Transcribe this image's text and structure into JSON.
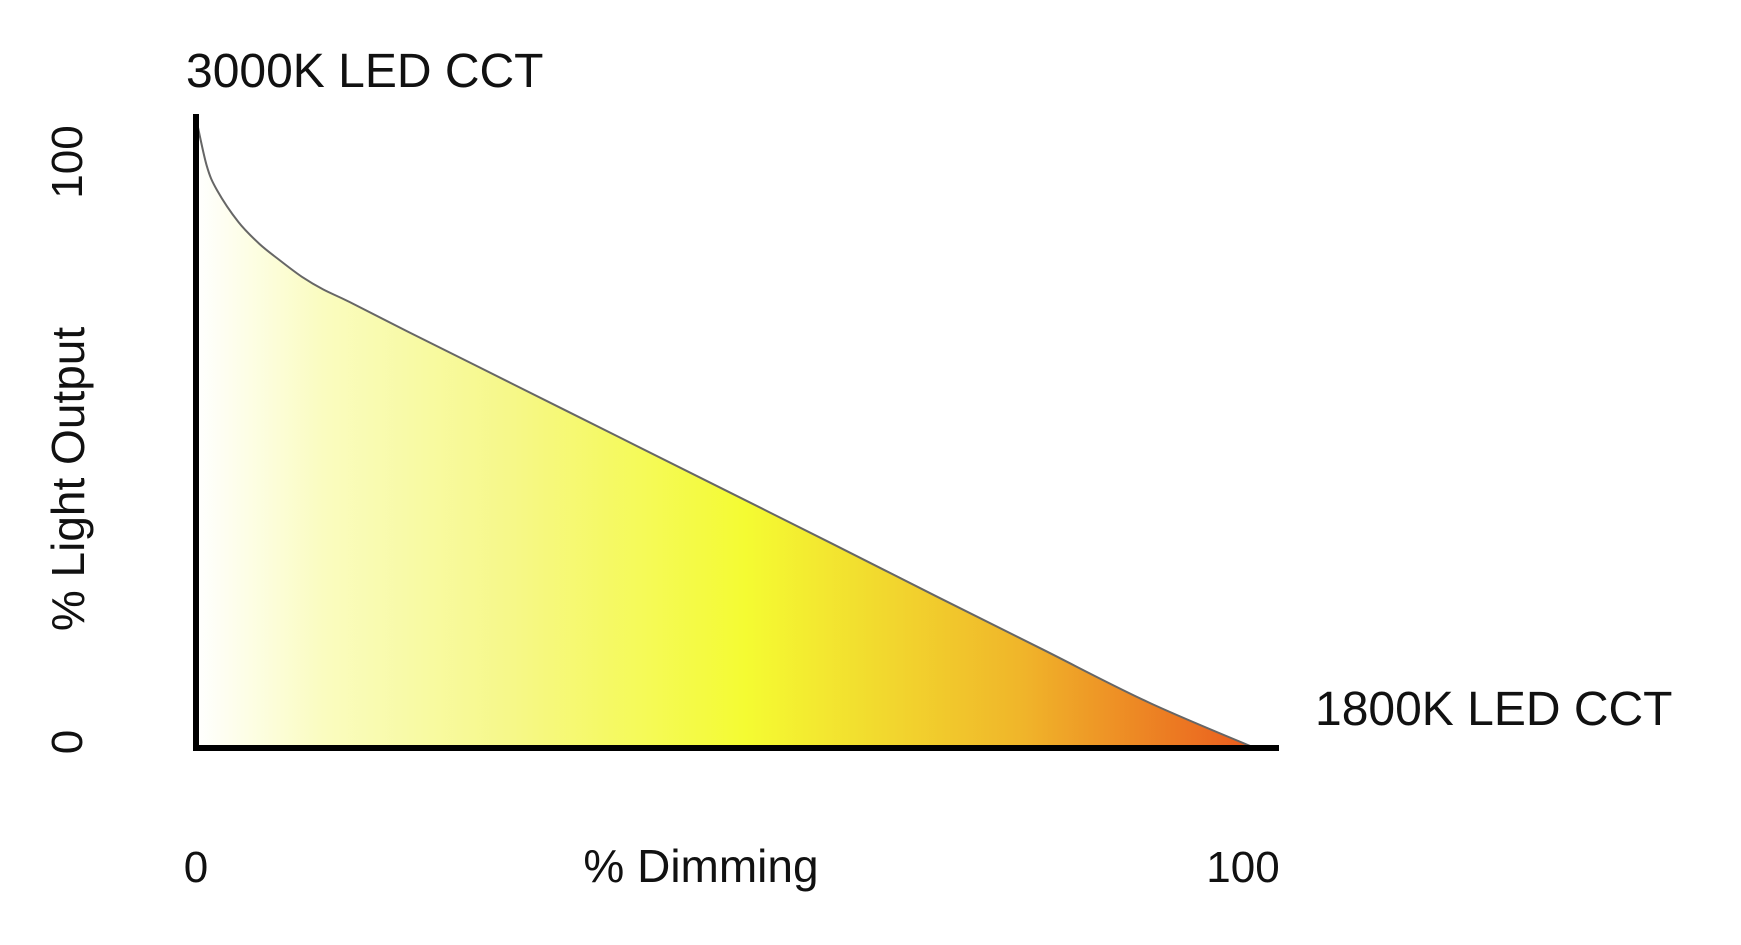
{
  "chart_data": {
    "type": "area",
    "title": "",
    "xlabel": "% Dimming",
    "ylabel": "% Light Output",
    "xlim": [
      0,
      100
    ],
    "ylim": [
      0,
      100
    ],
    "x_ticks": [
      "0",
      "100"
    ],
    "y_ticks": [
      "0",
      "100"
    ],
    "grid": false,
    "annotations": {
      "start": "3000K LED CCT",
      "end": "1800K LED CCT"
    },
    "series": [
      {
        "x": [
          0,
          1,
          2,
          4,
          6,
          8,
          10,
          12,
          14.5,
          20,
          30,
          40,
          50,
          60,
          70,
          80,
          90,
          100
        ],
        "y": [
          100,
          92.5,
          88.5,
          83.5,
          80,
          77.3,
          74.8,
          72.8,
          70.8,
          66.1,
          57.7,
          49.3,
          40.9,
          32.5,
          24.0,
          15.6,
          7.2,
          0
        ]
      }
    ],
    "fill_gradient": [
      "#ffffff",
      "#fafcc0",
      "#f6f888",
      "#f4fb32",
      "#f0b52a",
      "#ea5a1e"
    ],
    "curve_color": "#666666",
    "axis_color": "#000000"
  }
}
